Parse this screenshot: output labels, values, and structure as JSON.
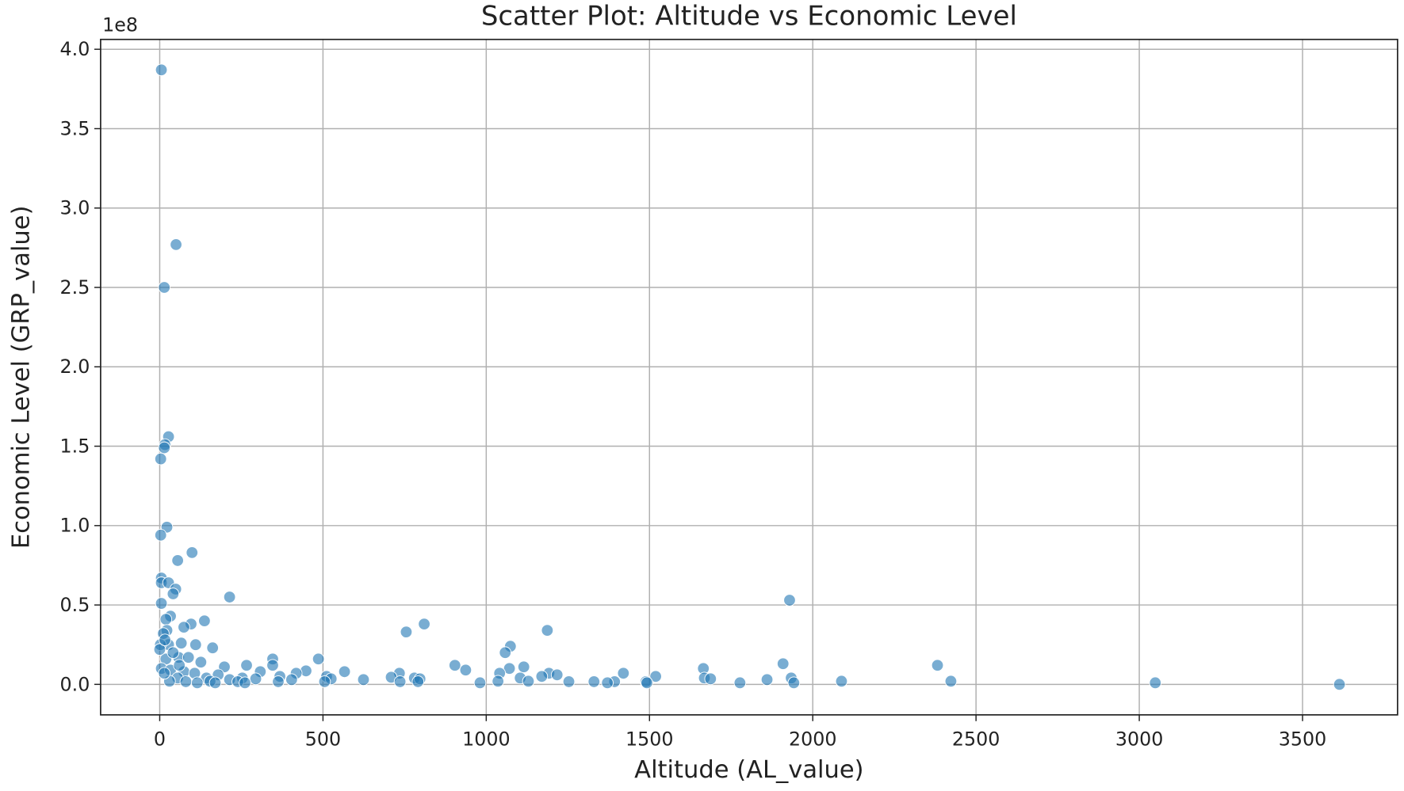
{
  "chart_data": {
    "type": "scatter",
    "title": "Scatter Plot: Altitude vs Economic Level",
    "xlabel": "Altitude (AL_value)",
    "ylabel": "Economic Level (GRP_value)",
    "y_offset_label": "1e8",
    "color": "#1f77b4",
    "grid": true,
    "xlim": [
      -181,
      3791
    ],
    "ylim": [
      -19200000,
      406200000
    ],
    "xticks": [
      0,
      500,
      1000,
      1500,
      2000,
      2500,
      3000,
      3500
    ],
    "yticks": [
      {
        "value": 0,
        "label": "0.0"
      },
      {
        "value": 50000000,
        "label": "0.5"
      },
      {
        "value": 100000000,
        "label": "1.0"
      },
      {
        "value": 150000000,
        "label": "1.5"
      },
      {
        "value": 200000000,
        "label": "2.0"
      },
      {
        "value": 250000000,
        "label": "2.5"
      },
      {
        "value": 300000000,
        "label": "3.0"
      },
      {
        "value": 350000000,
        "label": "3.5"
      },
      {
        "value": 400000000,
        "label": "4.0"
      }
    ],
    "x": [
      5,
      50,
      14,
      27,
      16,
      14,
      3,
      22,
      3,
      99,
      55,
      5,
      5,
      27,
      49,
      41,
      214,
      1929,
      5,
      33,
      19,
      137,
      96,
      810,
      1187,
      755,
      74,
      22,
      11,
      66,
      110,
      27,
      2,
      1074,
      162,
      1058,
      486,
      58,
      19,
      88,
      346,
      126,
      1909,
      2382,
      904,
      266,
      346,
      1115,
      1665,
      937,
      1071,
      198,
      5,
      33,
      448,
      566,
      1420,
      1192,
      1041,
      734,
      74,
      308,
      418,
      179,
      107,
      1217,
      1519,
      1170,
      511,
      368,
      709,
      1934,
      1668,
      1104,
      780,
      253,
      143,
      55,
      1687,
      624,
      1860,
      797,
      525,
      404,
      294,
      214,
      2423,
      2088,
      1393,
      1489,
      1330,
      1253,
      1129,
      1036,
      791,
      736,
      505,
      363,
      239,
      154,
      80,
      30,
      1942,
      1777,
      1371,
      981,
      3049,
      3613,
      1492,
      170,
      115,
      261,
      0,
      16,
      41,
      60,
      14
    ],
    "values": [
      387000000,
      277000000,
      250000000,
      156000000,
      151000000,
      149000000,
      142000000,
      99000000,
      94000000,
      83000000,
      78000000,
      67000000,
      64000000,
      64000000,
      60000000,
      57000000,
      55000000,
      53000000,
      51000000,
      43000000,
      41000000,
      40000000,
      38000000,
      38000000,
      34000000,
      33000000,
      36000000,
      34000000,
      32000000,
      26000000,
      25000000,
      25000000,
      25000000,
      24000000,
      23000000,
      20000000,
      16000000,
      17000000,
      16000000,
      17000000,
      16000000,
      14000000,
      13000000,
      12000000,
      12000000,
      12000000,
      12000000,
      11000000,
      10000000,
      9000000,
      10000000,
      11000000,
      10000000,
      9000000,
      8500000,
      8000000,
      7000000,
      7000000,
      7000000,
      7000000,
      8000000,
      8000000,
      7000000,
      6000000,
      7000000,
      6000000,
      5000000,
      5000000,
      5000000,
      5000000,
      4500000,
      4000000,
      4000000,
      4000000,
      4000000,
      4000000,
      4000000,
      4000000,
      3500000,
      3000000,
      3000000,
      3500000,
      3500000,
      3000000,
      3500000,
      3000000,
      2000000,
      2000000,
      1700000,
      1700000,
      1700000,
      1700000,
      2000000,
      2000000,
      1700000,
      1700000,
      1700000,
      1700000,
      1700000,
      2000000,
      1700000,
      2000000,
      1000000,
      1000000,
      1000000,
      1000000,
      1000000,
      0,
      1000000,
      1000000,
      1000000,
      1000000,
      22000000,
      28000000,
      20000000,
      12000000,
      7000000
    ]
  }
}
